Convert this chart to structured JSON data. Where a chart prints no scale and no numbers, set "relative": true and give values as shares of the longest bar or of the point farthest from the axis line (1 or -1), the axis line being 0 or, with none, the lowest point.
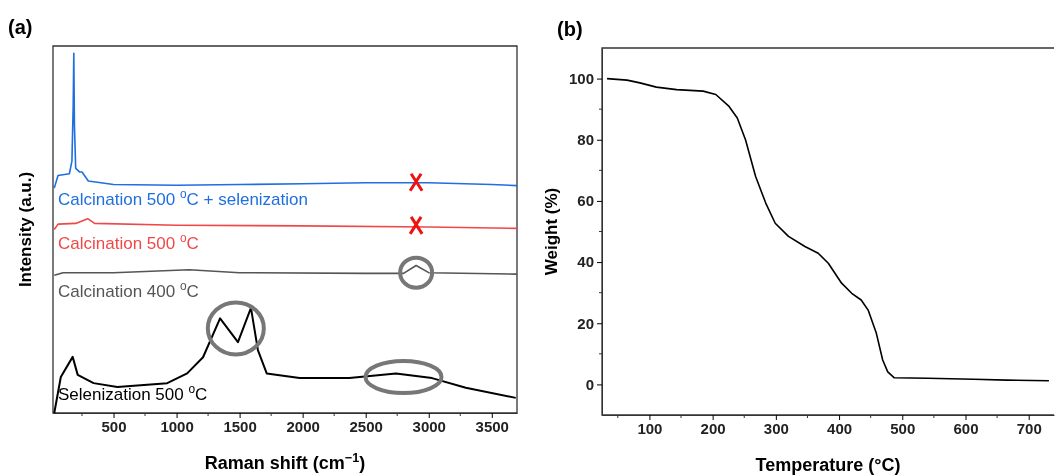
{
  "chart_data": [
    {
      "type": "line",
      "title": "(a)",
      "xlabel": "Raman shift (cm$^{−1}$)",
      "ylabel": "Intensity (a.u.)",
      "relative": true,
      "xlim": [
        20,
        3700
      ],
      "xticks": [
        500,
        1000,
        1500,
        2000,
        2500,
        3000,
        3500
      ],
      "tick_labels": "x",
      "series": [
        {
          "name": "Calcination 500 $^{o}$C + selenization",
          "color": "#1f6fe0",
          "x": [
            30,
            60,
            150,
            170,
            180,
            185,
            190,
            200,
            230,
            250,
            300,
            500,
            1000,
            1500,
            2000,
            2500,
            3000,
            3500,
            3700
          ],
          "values": [
            0.625,
            0.66,
            0.665,
            0.7,
            0.85,
            1.0,
            0.8,
            0.68,
            0.67,
            0.67,
            0.645,
            0.635,
            0.633,
            0.635,
            0.637,
            0.64,
            0.64,
            0.635,
            0.632
          ]
        },
        {
          "name": "Calcination 500 $^{o}$C",
          "color": "#f04848",
          "x": [
            30,
            60,
            200,
            295,
            350,
            1000,
            2000,
            3000,
            3700
          ],
          "values": [
            0.51,
            0.525,
            0.527,
            0.54,
            0.527,
            0.522,
            0.52,
            0.517,
            0.513
          ]
        },
        {
          "name": "Calcination 400 $^{o}$C",
          "color": "#555555",
          "x": [
            30,
            100,
            500,
            1100,
            1500,
            2500,
            2800,
            2900,
            3000,
            3700
          ],
          "values": [
            0.383,
            0.39,
            0.39,
            0.398,
            0.39,
            0.388,
            0.388,
            0.41,
            0.39,
            0.386
          ]
        },
        {
          "name": "Selenization 500 $^{o}$C",
          "color": "#000000",
          "x": [
            30,
            82,
            176,
            216,
            342,
            530,
            926,
            1084,
            1210,
            1345,
            1487,
            1590,
            1645,
            1715,
            1976,
            2370,
            2740,
            3026,
            3294,
            3690
          ],
          "values": [
            0,
            0.1,
            0.156,
            0.106,
            0.083,
            0.072,
            0.083,
            0.11,
            0.155,
            0.263,
            0.197,
            0.292,
            0.175,
            0.11,
            0.097,
            0.097,
            0.11,
            0.097,
            0.07,
            0.042
          ]
        }
      ]
    },
    {
      "type": "line",
      "title": "(b)",
      "xlabel": "Temperature (°C)",
      "ylabel": "Weight (%)",
      "xlim": [
        25,
        740
      ],
      "ylim": [
        -10,
        110
      ],
      "xticks": [
        100,
        200,
        300,
        400,
        500,
        600,
        700
      ],
      "yticks": [
        0,
        20,
        40,
        60,
        80,
        100
      ],
      "series": [
        {
          "color": "#000000",
          "x": [
            33,
            64.5,
            85,
            111,
            143,
            185,
            205,
            226,
            239,
            252,
            268,
            284,
            299,
            320,
            346,
            367,
            383,
            404,
            420,
            435,
            446,
            459,
            469,
            477,
            487,
            540,
            613,
            665,
            732
          ],
          "values": [
            100,
            99.5,
            98.6,
            97.2,
            96.4,
            95.9,
            94.8,
            90.9,
            87.1,
            80,
            68,
            59.3,
            52.7,
            48.4,
            45.1,
            42.9,
            39.6,
            33.1,
            29.8,
            27.6,
            24.3,
            16.7,
            8,
            4.1,
            2.2,
            2,
            1.7,
            1.4,
            1.2
          ]
        }
      ]
    }
  ]
}
